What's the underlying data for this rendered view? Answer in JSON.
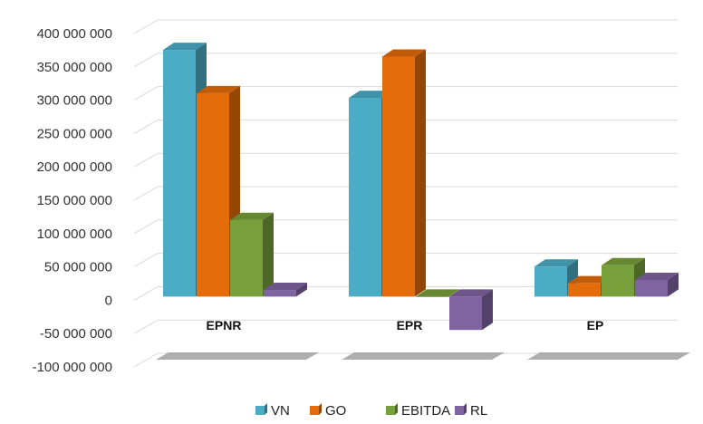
{
  "chart_data": {
    "type": "bar",
    "categories": [
      "EPNR",
      "EPR",
      "EP"
    ],
    "series": [
      {
        "name": "VN",
        "values": [
          370000000,
          298000000,
          45000000
        ],
        "color": "#4bacc6"
      },
      {
        "name": "GO",
        "values": [
          305000000,
          360000000,
          20000000
        ],
        "color": "#e46c0a"
      },
      {
        "name": "EBITDA",
        "values": [
          115000000,
          0,
          47000000
        ],
        "color": "#77a03a"
      },
      {
        "name": "RL",
        "values": [
          10000000,
          -50000000,
          25000000
        ],
        "color": "#8064a2"
      }
    ],
    "ylim": [
      -100000000,
      400000000
    ],
    "yticks": [
      {
        "value": 400000000,
        "label": "400 000 000"
      },
      {
        "value": 350000000,
        "label": "350 000 000"
      },
      {
        "value": 300000000,
        "label": "300 000 000"
      },
      {
        "value": 250000000,
        "label": "250 000 000"
      },
      {
        "value": 200000000,
        "label": "200 000 000"
      },
      {
        "value": 150000000,
        "label": "150 000 000"
      },
      {
        "value": 100000000,
        "label": "100 000 000"
      },
      {
        "value": 50000000,
        "label": "50 000 000"
      },
      {
        "value": 0,
        "label": "0"
      },
      {
        "value": -50000000,
        "label": "-50 000 000"
      },
      {
        "value": -100000000,
        "label": "-100 000 000"
      }
    ],
    "grid": true,
    "legend_position": "bottom",
    "three_d": true
  }
}
